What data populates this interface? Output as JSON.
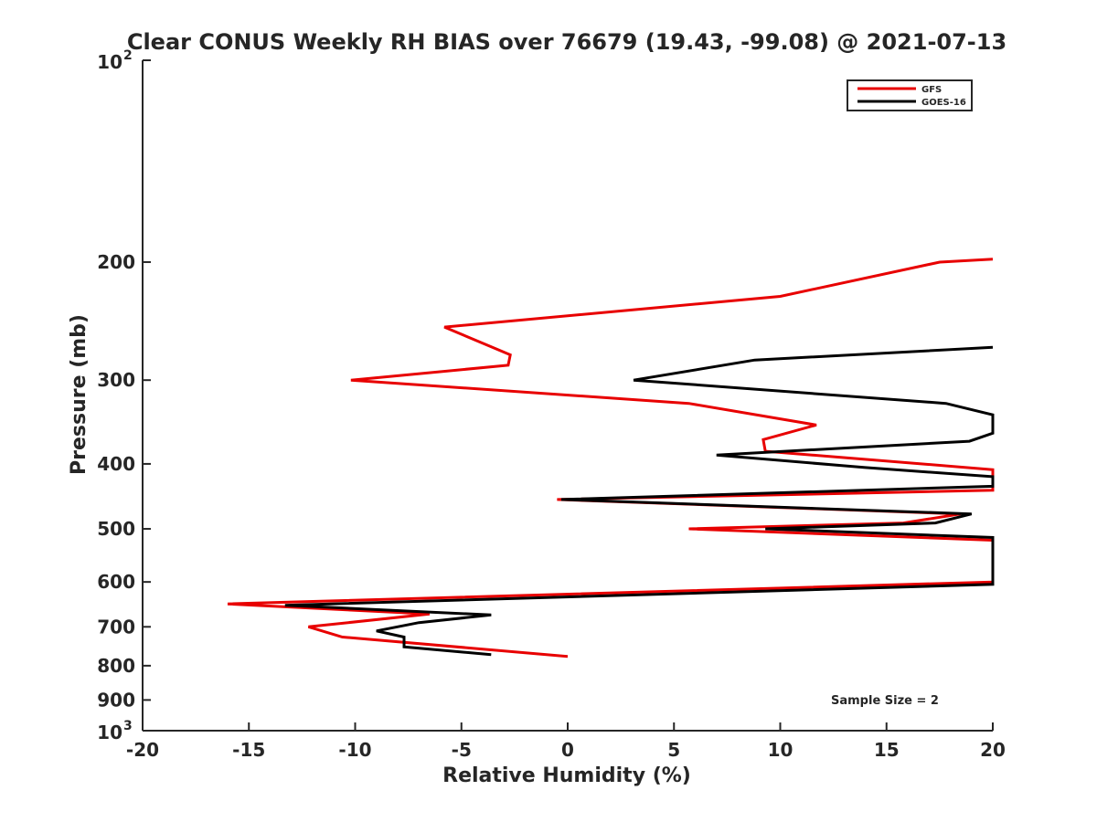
{
  "chart_data": {
    "type": "line",
    "title": "Clear CONUS Weekly RH BIAS over 76679 (19.43, -99.08) @ 2021-07-13",
    "xlabel": "Relative Humidity (%)",
    "ylabel": "Pressure (mb)",
    "xlim": [
      -20,
      20
    ],
    "ylim": [
      100,
      1000
    ],
    "y_scale": "log",
    "y_reversed": true,
    "grid": false,
    "legend_position": "top-right",
    "x_ticks": [
      "-20",
      "-15",
      "-10",
      "-5",
      "0",
      "5",
      "10",
      "15",
      "20"
    ],
    "y_ticks": [
      {
        "value": 100,
        "base": "10",
        "exp": "2"
      },
      {
        "value": 200,
        "label": "200"
      },
      {
        "value": 300,
        "label": "300"
      },
      {
        "value": 400,
        "label": "400"
      },
      {
        "value": 500,
        "label": "500"
      },
      {
        "value": 600,
        "label": "600"
      },
      {
        "value": 700,
        "label": "700"
      },
      {
        "value": 800,
        "label": "800"
      },
      {
        "value": 900,
        "label": "900"
      },
      {
        "value": 1000,
        "base": "10",
        "exp": "3"
      }
    ],
    "series": [
      {
        "name": "GFS",
        "color": "#e80000",
        "points": [
          {
            "x": 20,
            "y": 198
          },
          {
            "x": 17.5,
            "y": 200
          },
          {
            "x": 10,
            "y": 225
          },
          {
            "x": -5.8,
            "y": 250
          },
          {
            "x": -2.7,
            "y": 275
          },
          {
            "x": -2.8,
            "y": 285
          },
          {
            "x": -10.2,
            "y": 300
          },
          {
            "x": 5.7,
            "y": 325
          },
          {
            "x": 11.7,
            "y": 350
          },
          {
            "x": 9.2,
            "y": 368
          },
          {
            "x": 9.3,
            "y": 383
          },
          {
            "x": 20,
            "y": 408
          },
          {
            "x": 20,
            "y": 438
          },
          {
            "x": -0.5,
            "y": 452
          },
          {
            "x": 18.5,
            "y": 475
          },
          {
            "x": 15.8,
            "y": 490
          },
          {
            "x": 5.7,
            "y": 500
          },
          {
            "x": 20,
            "y": 520
          },
          {
            "x": 20,
            "y": 600
          },
          {
            "x": -16,
            "y": 647
          },
          {
            "x": -6.5,
            "y": 670
          },
          {
            "x": -12.2,
            "y": 700
          },
          {
            "x": -10.6,
            "y": 725
          },
          {
            "x": 0,
            "y": 775
          }
        ]
      },
      {
        "name": "GOES-16",
        "color": "#000000",
        "points": [
          {
            "x": 20,
            "y": 268
          },
          {
            "x": 8.8,
            "y": 280
          },
          {
            "x": 3.1,
            "y": 300
          },
          {
            "x": 17.8,
            "y": 325
          },
          {
            "x": 20,
            "y": 338
          },
          {
            "x": 20,
            "y": 360
          },
          {
            "x": 18.9,
            "y": 370
          },
          {
            "x": 7,
            "y": 388
          },
          {
            "x": 14,
            "y": 405
          },
          {
            "x": 20,
            "y": 418
          },
          {
            "x": 20,
            "y": 432
          },
          {
            "x": -0.3,
            "y": 452
          },
          {
            "x": 19,
            "y": 475
          },
          {
            "x": 17.3,
            "y": 490
          },
          {
            "x": 9.3,
            "y": 500
          },
          {
            "x": 20,
            "y": 515
          },
          {
            "x": 20,
            "y": 605
          },
          {
            "x": -13.3,
            "y": 650
          },
          {
            "x": -3.6,
            "y": 672
          },
          {
            "x": -7,
            "y": 690
          },
          {
            "x": -9,
            "y": 710
          },
          {
            "x": -7.7,
            "y": 725
          },
          {
            "x": -7.7,
            "y": 750
          },
          {
            "x": -3.6,
            "y": 770
          }
        ]
      }
    ],
    "annotations": [
      "Sample Size = 2"
    ]
  }
}
